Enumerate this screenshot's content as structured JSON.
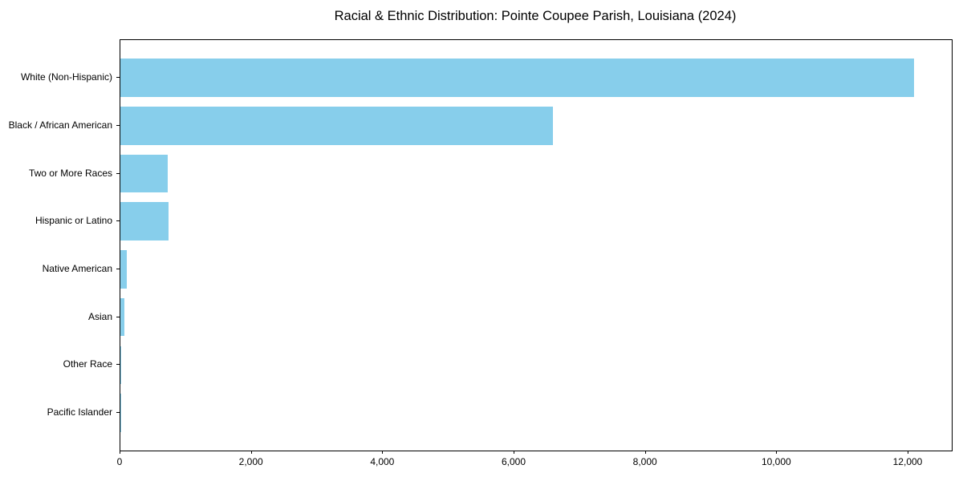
{
  "figure": {
    "background": "#ffffff",
    "text_color": "#000000",
    "frame_color": "#000000"
  },
  "chart_data": {
    "type": "bar",
    "orientation": "horizontal",
    "title": "Racial & Ethnic Distribution: Pointe Coupee Parish, Louisiana (2024)",
    "categories": [
      "White (Non-Hispanic)",
      "Black / African American",
      "Two or More Races",
      "Hispanic or Latino",
      "Native American",
      "Asian",
      "Other Race",
      "Pacific Islander"
    ],
    "values": [
      12080,
      6590,
      725,
      735,
      94,
      55,
      12,
      3
    ],
    "bar_color": "#87CEEB",
    "xlabel": "",
    "ylabel": "",
    "xlim": [
      0,
      12660
    ],
    "x_ticks": [
      0,
      2000,
      4000,
      6000,
      8000,
      10000,
      12000
    ],
    "x_tick_labels": [
      "0",
      "2,000",
      "4,000",
      "6,000",
      "8,000",
      "10,000",
      "12,000"
    ],
    "grid": false,
    "legend": "none"
  }
}
